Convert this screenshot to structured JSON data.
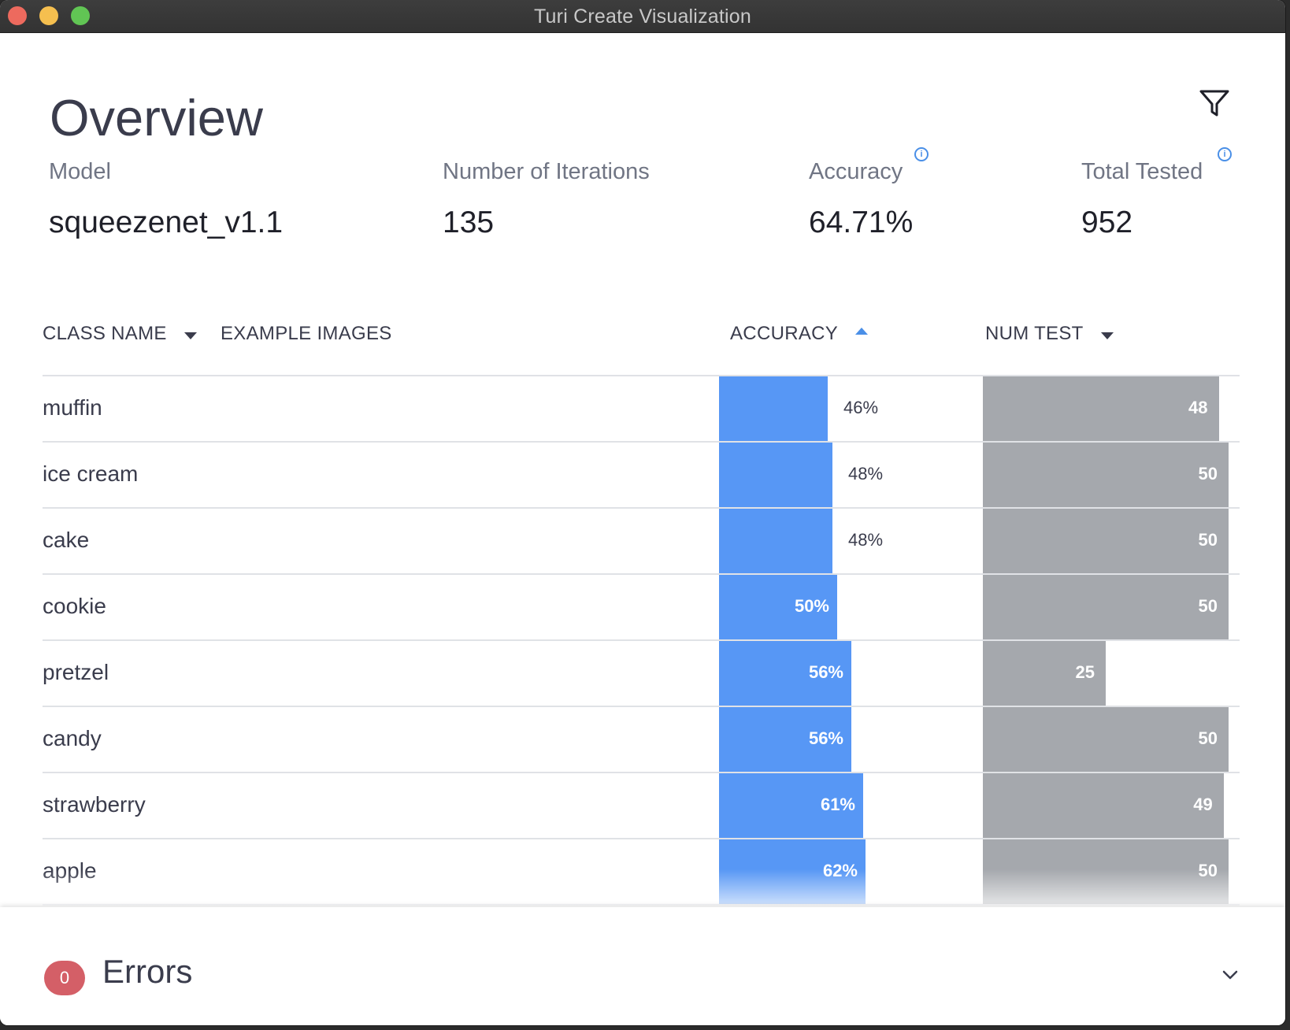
{
  "window": {
    "title": "Turi Create Visualization"
  },
  "overview": {
    "title": "Overview",
    "stats": [
      {
        "label": "Model",
        "value": "squeezenet_v1.1"
      },
      {
        "label": "Number of Iterations",
        "value": "135"
      },
      {
        "label": "Accuracy",
        "value": "64.71%",
        "info": "i"
      },
      {
        "label": "Total Tested",
        "value": "952",
        "info": "i"
      }
    ]
  },
  "table": {
    "headers": {
      "class_name": "CLASS NAME",
      "example_images": "EXAMPLE IMAGES",
      "accuracy": "ACCURACY",
      "num_test": "NUM TEST"
    },
    "sort": {
      "column": "accuracy",
      "direction": "ascending"
    },
    "rows": [
      {
        "class_name": "muffin",
        "accuracy": 46,
        "accuracy_label": "46%",
        "num_test": 48,
        "num_test_label": "48"
      },
      {
        "class_name": "ice cream",
        "accuracy": 48,
        "accuracy_label": "48%",
        "num_test": 50,
        "num_test_label": "50"
      },
      {
        "class_name": "cake",
        "accuracy": 48,
        "accuracy_label": "48%",
        "num_test": 50,
        "num_test_label": "50"
      },
      {
        "class_name": "cookie",
        "accuracy": 50,
        "accuracy_label": "50%",
        "num_test": 50,
        "num_test_label": "50"
      },
      {
        "class_name": "pretzel",
        "accuracy": 56,
        "accuracy_label": "56%",
        "num_test": 25,
        "num_test_label": "25"
      },
      {
        "class_name": "candy",
        "accuracy": 56,
        "accuracy_label": "56%",
        "num_test": 50,
        "num_test_label": "50"
      },
      {
        "class_name": "strawberry",
        "accuracy": 61,
        "accuracy_label": "61%",
        "num_test": 49,
        "num_test_label": "49"
      },
      {
        "class_name": "apple",
        "accuracy": 62,
        "accuracy_label": "62%",
        "num_test": 50,
        "num_test_label": "50"
      }
    ]
  },
  "errors": {
    "title": "Errors",
    "count": "0"
  },
  "icons": {
    "filter": "filter-icon",
    "info": "info-icon",
    "sort_desc": "caret-down-icon",
    "sort_asc": "caret-up-icon",
    "expand": "chevron-down-icon"
  },
  "colors": {
    "accuracy_bar": "#5797f5",
    "num_test_bar": "#a5a8ad",
    "sort_active": "#4a8fe7",
    "error_badge": "#d45f67",
    "traffic_close": "#ed6a5e",
    "traffic_minimize": "#f5bf4f",
    "traffic_maximize": "#61c554"
  }
}
